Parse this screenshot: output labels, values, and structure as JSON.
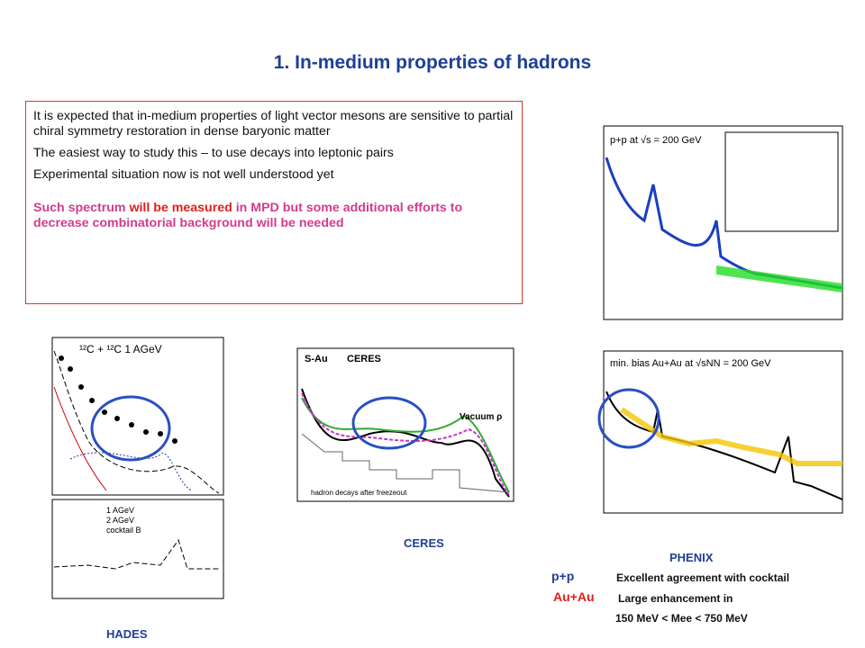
{
  "title": "1. In-medium properties of hadrons",
  "text_box": {
    "paragraphs": [
      "It is expected that in-medium properties of light vector mesons are sensitive to partial chiral symmetry restoration in dense baryonic matter",
      "The easiest way to study this – to use decays into leptonic pairs",
      "Experimental situation now is not well understood yet"
    ],
    "highlight": [
      "Such spectrum ",
      "will be measured",
      " in MPD but some additional efforts to decrease combinatorial background will be needed"
    ]
  },
  "figures": {
    "hades": {
      "caption": "HADES",
      "top_label": "¹²C + ¹²C 1 AGeV",
      "legend": [
        "1 AGeV",
        "2 AGeV",
        "cocktail B"
      ]
    },
    "ceres": {
      "caption": "CERES",
      "system": "S-Au",
      "experiment": "CERES",
      "annotation": "Vacuum ρ",
      "footnote": "hadron decays after freezeout"
    },
    "phenix": {
      "caption": "PHENIX",
      "pp_label": "p+p at √s = 200 GeV",
      "auau_label": "min. bias Au+Au at √sNN = 200 GeV"
    }
  },
  "notes": [
    {
      "system": "p+p",
      "text": "Excellent agreement with cocktail"
    },
    {
      "system": "Au+Au",
      "text": "Large enhancement in",
      "detail": "150 MeV < Mee < 750 MeV"
    }
  ]
}
